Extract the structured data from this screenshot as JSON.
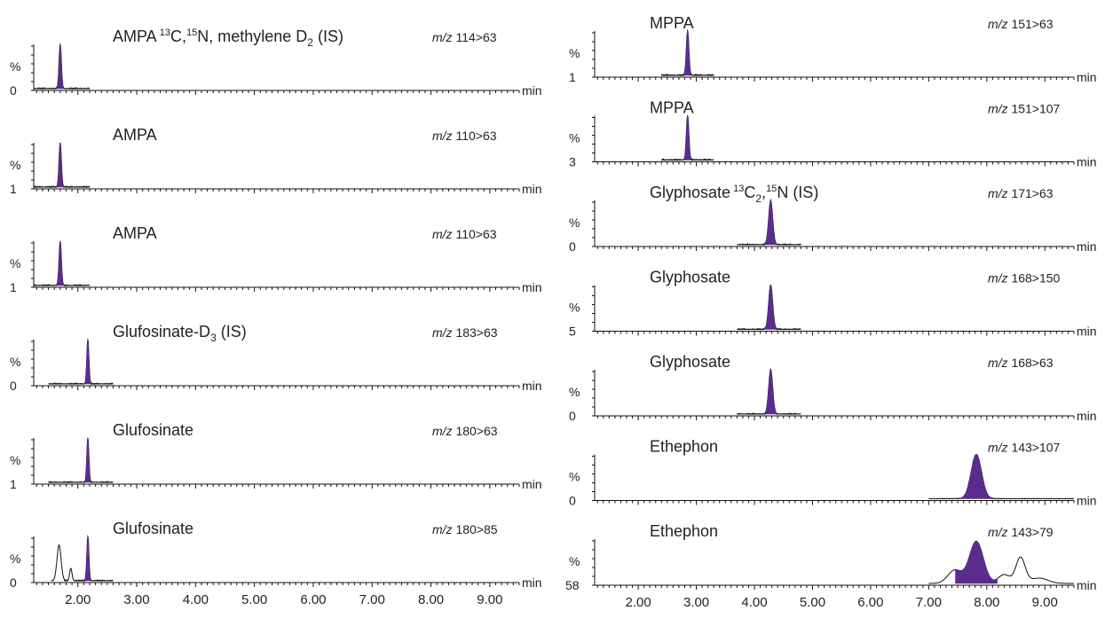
{
  "chart_data": {
    "type": "line",
    "x_axis": {
      "unit": "min",
      "range": [
        1.25,
        9.5
      ],
      "major_ticks": [
        2.0,
        3.0,
        4.0,
        5.0,
        6.0,
        7.0,
        8.0,
        9.0
      ],
      "tick_labels": [
        "2.00",
        "3.00",
        "4.00",
        "5.00",
        "6.00",
        "7.00",
        "8.00",
        "9.00"
      ]
    },
    "y_axis_label": "%",
    "grid": false,
    "layout": "two columns of stacked chromatogram panels",
    "peak_fill_color": "#5b2c8e",
    "trace_color": "#111111",
    "panels": [
      {
        "column": "left",
        "compound": "AMPA",
        "superscript_parts": [
          "13",
          "15"
        ],
        "compound_rest": [
          " C,",
          "N, methylene D"
        ],
        "subscript": "2",
        "suffix": " (IS)",
        "mz_prefix": "m/z",
        "transition": "114>63",
        "y_min_label": "0",
        "peak_rt": 1.7,
        "peak_width": 0.02,
        "trace_range": [
          1.25,
          2.2
        ]
      },
      {
        "column": "left",
        "compound": "AMPA",
        "mz_prefix": "m/z",
        "transition": "110>63",
        "y_min_label": "1",
        "peak_rt": 1.7,
        "peak_width": 0.02,
        "trace_range": [
          1.25,
          2.2
        ]
      },
      {
        "column": "left",
        "compound": "AMPA",
        "mz_prefix": "m/z",
        "transition": "110>63",
        "y_min_label": "1",
        "peak_rt": 1.7,
        "peak_width": 0.02,
        "trace_range": [
          1.25,
          2.2
        ]
      },
      {
        "column": "left",
        "compound": "Glufosinate-D",
        "subscript": "3",
        "suffix": " (IS)",
        "mz_prefix": "m/z",
        "transition": "183>63",
        "y_min_label": "0",
        "peak_rt": 2.17,
        "peak_width": 0.018,
        "trace_range": [
          1.5,
          2.6
        ]
      },
      {
        "column": "left",
        "compound": "Glufosinate",
        "mz_prefix": "m/z",
        "transition": "180>63",
        "y_min_label": "1",
        "peak_rt": 2.17,
        "peak_width": 0.018,
        "trace_range": [
          1.5,
          2.6
        ]
      },
      {
        "column": "left",
        "compound": "Glufosinate",
        "mz_prefix": "m/z",
        "transition": "180>85",
        "y_min_label": "0",
        "peak_rt": 2.17,
        "peak_width": 0.018,
        "trace_range": [
          1.55,
          2.6
        ],
        "extra_peaks": [
          {
            "rt": 1.68,
            "height": 0.8,
            "width": 0.035
          },
          {
            "rt": 1.88,
            "height": 0.28,
            "width": 0.02
          }
        ]
      },
      {
        "column": "right",
        "compound": "MPPA",
        "mz_prefix": "m/z",
        "transition": "151>63",
        "y_min_label": "1",
        "peak_rt": 2.85,
        "peak_width": 0.022,
        "trace_range": [
          2.4,
          3.3
        ]
      },
      {
        "column": "right",
        "compound": "MPPA",
        "mz_prefix": "m/z",
        "transition": "151>107",
        "y_min_label": "3",
        "peak_rt": 2.85,
        "peak_width": 0.022,
        "trace_range": [
          2.4,
          3.3
        ]
      },
      {
        "column": "right",
        "compound": "Glyphosate",
        "superscript_parts": [
          "13",
          "15"
        ],
        "compound_rest": [
          " C",
          ",",
          "N"
        ],
        "subscript": "2",
        "suffix": " (IS)",
        "mz_prefix": "m/z",
        "transition": "171>63",
        "y_min_label": "0",
        "peak_rt": 4.28,
        "peak_width": 0.035,
        "trace_range": [
          3.7,
          4.8
        ]
      },
      {
        "column": "right",
        "compound": "Glyphosate",
        "mz_prefix": "m/z",
        "transition": "168>150",
        "y_min_label": "5",
        "peak_rt": 4.28,
        "peak_width": 0.035,
        "trace_range": [
          3.7,
          4.8
        ]
      },
      {
        "column": "right",
        "compound": "Glyphosate",
        "mz_prefix": "m/z",
        "transition": "168>63",
        "y_min_label": "0",
        "peak_rt": 4.28,
        "peak_width": 0.035,
        "trace_range": [
          3.7,
          4.8
        ]
      },
      {
        "column": "right",
        "compound": "Ethephon",
        "mz_prefix": "m/z",
        "transition": "143>107",
        "y_min_label": "0",
        "peak_rt": 7.82,
        "peak_width": 0.09,
        "trace_range": [
          7.0,
          9.5
        ]
      },
      {
        "column": "right",
        "compound": "Ethephon",
        "mz_prefix": "m/z",
        "transition": "143>79",
        "y_min_label": "58",
        "peak_rt": 7.82,
        "peak_width": 0.12,
        "trace_range": [
          7.0,
          9.5
        ],
        "broad_background": true
      }
    ]
  }
}
